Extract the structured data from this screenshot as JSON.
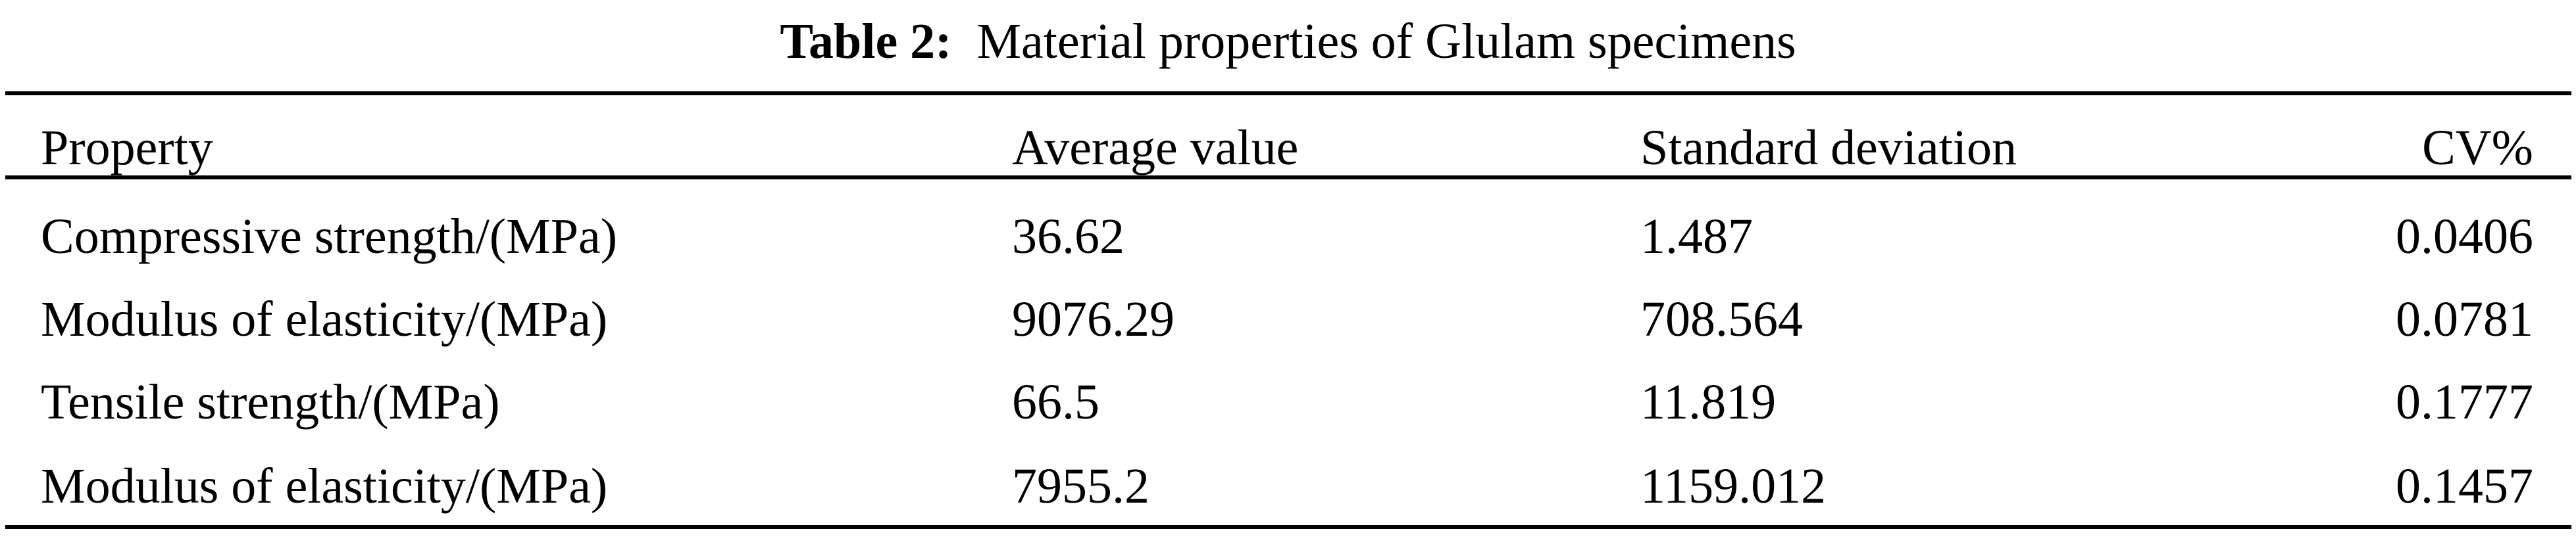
{
  "table": {
    "caption_label": "Table 2:",
    "caption_text": "Material properties of Glulam specimens",
    "headers": [
      "Property",
      "Average value",
      "Standard deviation",
      "CV%"
    ],
    "rows": [
      [
        "Compressive strength/(MPa)",
        "36.62",
        "1.487",
        "0.0406"
      ],
      [
        "Modulus of elasticity/(MPa)",
        "9076.29",
        "708.564",
        "0.0781"
      ],
      [
        "Tensile strength/(MPa)",
        "66.5",
        "11.819",
        "0.1777"
      ],
      [
        "Modulus of elasticity/(MPa)",
        "7955.2",
        "1159.012",
        "0.1457"
      ]
    ]
  }
}
